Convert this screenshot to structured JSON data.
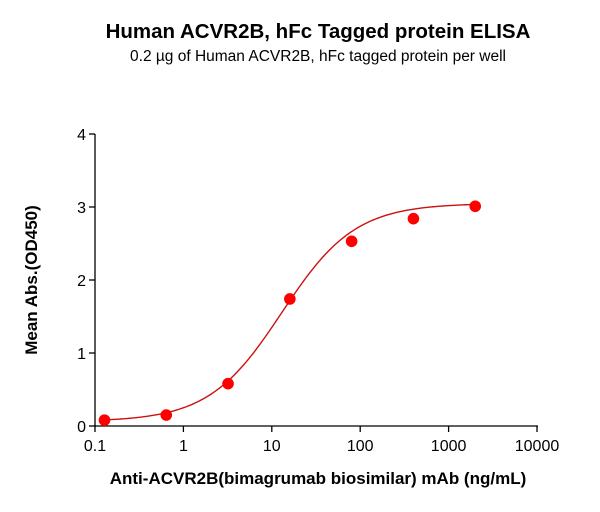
{
  "chart_data": {
    "type": "scatter",
    "title": "Human ACVR2B, hFc Tagged protein ELISA",
    "subtitle": "0.2 µg of Human ACVR2B, hFc tagged protein per well",
    "xlabel": "Anti-ACVR2B(bimagrumab biosimilar) mAb (ng/mL)",
    "ylabel": "Mean Abs.(OD450)",
    "xscale": "log",
    "xlim": [
      0.1,
      10000
    ],
    "ylim": [
      0,
      4
    ],
    "xticks": [
      0.1,
      1,
      10,
      100,
      1000,
      10000
    ],
    "xtick_labels": [
      "0.1",
      "1",
      "10",
      "100",
      "1000",
      "10000"
    ],
    "yticks": [
      0,
      1,
      2,
      3,
      4
    ],
    "ytick_labels": [
      "0",
      "1",
      "2",
      "3",
      "4"
    ],
    "grid": false,
    "legend": null,
    "series": [
      {
        "name": "Mean Abs.(OD450)",
        "x": [
          0.128,
          0.64,
          3.2,
          16,
          80,
          400,
          2000
        ],
        "y": [
          0.08,
          0.15,
          0.58,
          1.74,
          2.53,
          2.84,
          3.01
        ],
        "marker_color": "#FF0000",
        "line_color": "#CC1111",
        "fit": {
          "model": "4PL",
          "bottom": 0.06,
          "top": 3.05,
          "ec50": 13,
          "hill": 1.05
        }
      }
    ]
  }
}
